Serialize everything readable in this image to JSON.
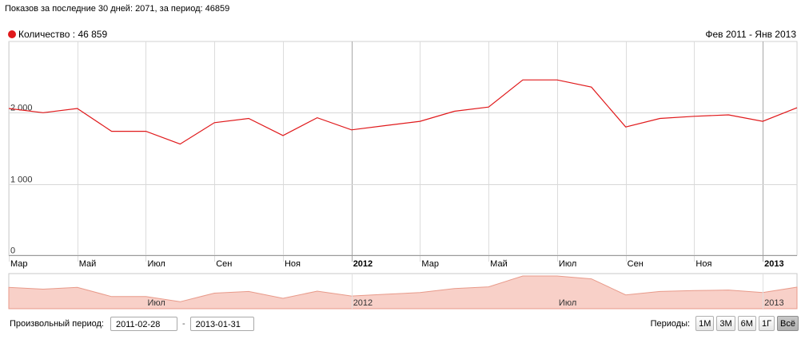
{
  "summary_text": "Показов за последние 30 дней: 2071, за период: 46859",
  "legend": {
    "label": "Количество : 46 859",
    "color": "#e0191b"
  },
  "period_range": "Фев 2011 - Янв 2013",
  "controls": {
    "custom_period_label": "Произвольный период:",
    "date_from": "2011-02-28",
    "date_separator": "-",
    "date_to": "2013-01-31",
    "periods_label": "Периоды:",
    "period_buttons": [
      "1М",
      "3М",
      "6М",
      "1Г",
      "Всё"
    ],
    "active_period": "Всё"
  },
  "chart_data": {
    "type": "line",
    "series": [
      {
        "name": "Количество",
        "color": "#e0191b",
        "values": [
          2060,
          2000,
          2060,
          1740,
          1740,
          1560,
          1860,
          1920,
          1680,
          1930,
          1760,
          1820,
          1880,
          2020,
          2080,
          2460,
          2460,
          2360,
          1800,
          1920,
          1950,
          1970,
          1880,
          2070
        ]
      }
    ],
    "x_labels": [
      {
        "label": "Мар",
        "bold": false
      },
      {
        "label": "Май",
        "bold": false
      },
      {
        "label": "Июл",
        "bold": false
      },
      {
        "label": "Сен",
        "bold": false
      },
      {
        "label": "Ноя",
        "bold": false
      },
      {
        "label": "2012",
        "bold": true
      },
      {
        "label": "Мар",
        "bold": false
      },
      {
        "label": "Май",
        "bold": false
      },
      {
        "label": "Июл",
        "bold": false
      },
      {
        "label": "Сен",
        "bold": false
      },
      {
        "label": "Ноя",
        "bold": false
      },
      {
        "label": "2013",
        "bold": true
      }
    ],
    "y_ticks": [
      {
        "value": 0,
        "label": "0"
      },
      {
        "value": 1000,
        "label": "1 000"
      },
      {
        "value": 2000,
        "label": "2 000"
      }
    ],
    "ylim": [
      0,
      3000
    ],
    "grid": true,
    "navigator": {
      "fill_color": "#f8d0c8",
      "line_color": "#e89a8a",
      "labels": [
        "Июл",
        "2012",
        "Июл",
        "2013"
      ]
    }
  }
}
